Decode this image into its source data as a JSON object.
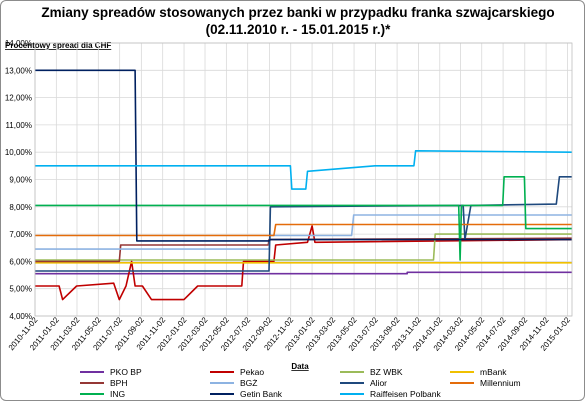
{
  "chart_data": {
    "type": "line",
    "title_line1": "Zmiany spreadów stosowanych przez banki w przypadku franka szwajcarskiego",
    "title_line2": "(02.11.2010 r. - 15.01.2015 r.)*",
    "ylabel": "Procentowy spread dla CHF",
    "xlabel": "Data",
    "ylim": [
      4.0,
      14.0
    ],
    "yticks": [
      "14,00%",
      "13,00%",
      "12,00%",
      "11,00%",
      "10,00%",
      "9,00%",
      "8,00%",
      "7,00%",
      "6,00%",
      "5,00%",
      "4,00%"
    ],
    "xticks": [
      "2010-11-02",
      "2011-01-02",
      "2011-03-02",
      "2011-05-02",
      "2011-07-02",
      "2011-09-02",
      "2011-11-02",
      "2012-01-02",
      "2012-03-02",
      "2012-05-02",
      "2012-07-02",
      "2012-09-02",
      "2012-11-02",
      "2013-01-02",
      "2013-03-02",
      "2013-05-02",
      "2013-07-02",
      "2013-09-02",
      "2013-11-02",
      "2014-01-02",
      "2014-03-02",
      "2014-05-02",
      "2014-07-02",
      "2014-09-02",
      "2014-11-02",
      "2015-01-02"
    ],
    "grid": true,
    "legend_position": "bottom",
    "series": [
      {
        "name": "PKO BP",
        "color": "#7030a0",
        "points": [
          [
            "2010-11-02",
            5.55
          ],
          [
            "2013-10-01",
            5.55
          ],
          [
            "2013-10-01",
            5.6
          ],
          [
            "2015-01-15",
            5.6
          ]
        ]
      },
      {
        "name": "Pekao",
        "color": "#c00000",
        "points": [
          [
            "2010-11-02",
            5.1
          ],
          [
            "2011-01-10",
            5.1
          ],
          [
            "2011-01-20",
            4.6
          ],
          [
            "2011-03-01",
            5.1
          ],
          [
            "2011-06-15",
            5.2
          ],
          [
            "2011-07-01",
            4.6
          ],
          [
            "2011-07-20",
            5.1
          ],
          [
            "2011-08-05",
            6.0
          ],
          [
            "2011-08-15",
            5.1
          ],
          [
            "2011-09-05",
            5.1
          ],
          [
            "2011-10-01",
            4.6
          ],
          [
            "2012-01-02",
            4.6
          ],
          [
            "2012-02-10",
            5.1
          ],
          [
            "2012-06-15",
            5.1
          ],
          [
            "2012-06-20",
            6.0
          ],
          [
            "2012-09-15",
            6.0
          ],
          [
            "2012-09-20",
            6.6
          ],
          [
            "2012-12-20",
            6.7
          ],
          [
            "2013-01-02",
            7.3
          ],
          [
            "2013-01-10",
            6.7
          ],
          [
            "2015-01-15",
            6.8
          ]
        ]
      },
      {
        "name": "BZ WBK",
        "color": "#9bbb59",
        "points": [
          [
            "2010-11-02",
            6.05
          ],
          [
            "2013-12-15",
            6.05
          ],
          [
            "2013-12-20",
            7.0
          ],
          [
            "2015-01-15",
            7.0
          ]
        ]
      },
      {
        "name": "mBank",
        "color": "#f0c000",
        "points": [
          [
            "2010-11-02",
            5.95
          ],
          [
            "2015-01-15",
            5.95
          ]
        ]
      },
      {
        "name": "BPH",
        "color": "#953735",
        "points": [
          [
            "2010-11-02",
            6.0
          ],
          [
            "2011-07-01",
            6.0
          ],
          [
            "2011-07-05",
            6.6
          ],
          [
            "2012-08-30",
            6.6
          ],
          [
            "2012-09-01",
            6.8
          ],
          [
            "2015-01-15",
            6.85
          ]
        ]
      },
      {
        "name": "BGŻ",
        "color": "#8db3e2",
        "points": [
          [
            "2010-11-02",
            6.45
          ],
          [
            "2012-09-01",
            6.45
          ],
          [
            "2012-09-05",
            6.95
          ],
          [
            "2013-04-25",
            6.95
          ],
          [
            "2013-05-01",
            7.7
          ],
          [
            "2015-01-15",
            7.7
          ]
        ]
      },
      {
        "name": "Alior",
        "color": "#1f497d",
        "points": [
          [
            "2010-11-02",
            5.65
          ],
          [
            "2012-09-01",
            5.65
          ],
          [
            "2012-09-05",
            8.0
          ],
          [
            "2014-03-10",
            8.05
          ],
          [
            "2014-03-15",
            6.8
          ],
          [
            "2014-04-01",
            8.05
          ],
          [
            "2014-12-01",
            8.1
          ],
          [
            "2014-12-10",
            9.1
          ],
          [
            "2015-01-15",
            9.1
          ]
        ]
      },
      {
        "name": "Millennium",
        "color": "#e46c0a",
        "points": [
          [
            "2010-11-02",
            6.95
          ],
          [
            "2012-09-15",
            6.95
          ],
          [
            "2012-09-20",
            7.35
          ],
          [
            "2015-01-15",
            7.35
          ]
        ]
      },
      {
        "name": "ING",
        "color": "#00b050",
        "points": [
          [
            "2010-11-02",
            8.05
          ],
          [
            "2014-02-25",
            8.05
          ],
          [
            "2014-03-01",
            6.05
          ],
          [
            "2014-03-05",
            8.05
          ],
          [
            "2014-07-01",
            8.05
          ],
          [
            "2014-07-05",
            9.1
          ],
          [
            "2014-09-01",
            9.1
          ],
          [
            "2014-09-05",
            7.2
          ],
          [
            "2015-01-15",
            7.2
          ]
        ]
      },
      {
        "name": "Getin Bank",
        "color": "#002060",
        "points": [
          [
            "2010-11-02",
            13.0
          ],
          [
            "2011-08-15",
            13.0
          ],
          [
            "2011-08-20",
            6.75
          ],
          [
            "2012-09-01",
            6.75
          ],
          [
            "2012-09-05",
            6.8
          ],
          [
            "2015-01-15",
            6.8
          ]
        ]
      },
      {
        "name": "Raiffeisen Polbank",
        "color": "#00b0f0",
        "points": [
          [
            "2010-11-02",
            9.5
          ],
          [
            "2012-11-01",
            9.5
          ],
          [
            "2012-11-05",
            8.65
          ],
          [
            "2012-12-15",
            8.65
          ],
          [
            "2012-12-20",
            9.3
          ],
          [
            "2013-07-01",
            9.5
          ],
          [
            "2013-10-20",
            9.5
          ],
          [
            "2013-10-25",
            10.05
          ],
          [
            "2015-01-15",
            10.0
          ]
        ]
      }
    ]
  },
  "footer_marker": ""
}
